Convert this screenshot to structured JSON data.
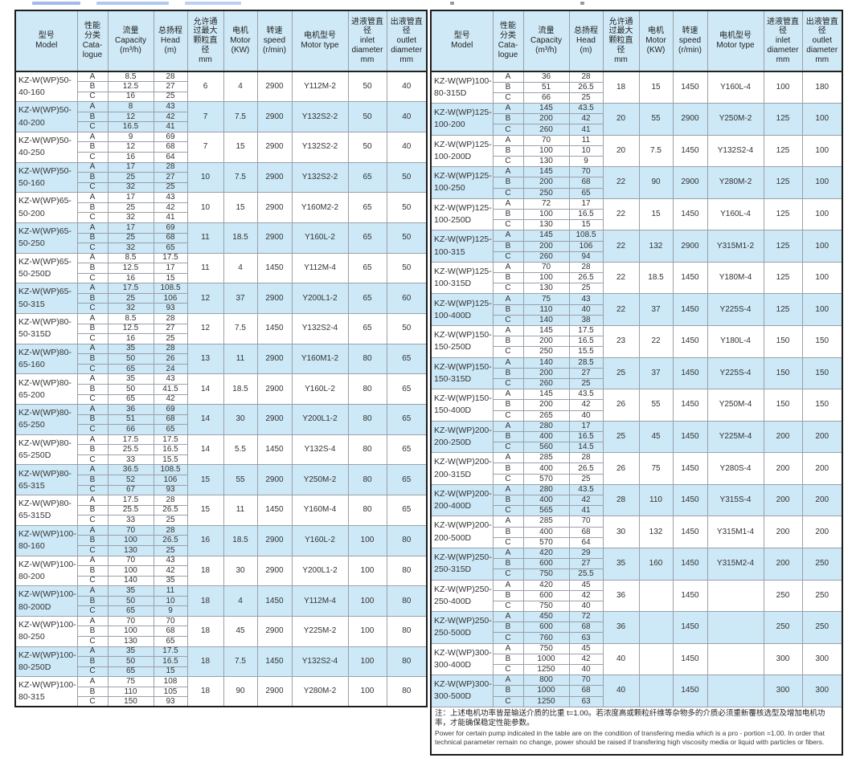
{
  "colors": {
    "header_bg": "#cfe9f6",
    "row_alt": "#cde8f6",
    "outer_border": "#1c1c1c",
    "inner_border": "#9aa0a8"
  },
  "columns": [
    {
      "key": "model",
      "label": "型号\nModel"
    },
    {
      "key": "cat",
      "label": "性能\n分类\nCata-\nlogue"
    },
    {
      "key": "capacity",
      "label": "流量\nCapacity\n(m³/h)"
    },
    {
      "key": "head",
      "label": "总扬程\nHead\n(m)"
    },
    {
      "key": "particle",
      "label": "允许通\n过最大\n颗粒直\n径\nmm"
    },
    {
      "key": "motor",
      "label": "电机\nMotor\n(KW)"
    },
    {
      "key": "speed",
      "label": "转速\nspeed\n(r/min)"
    },
    {
      "key": "type",
      "label": "电机型号\nMotor type"
    },
    {
      "key": "inlet",
      "label": "进液管直\n径\ninlet\ndiameter\nmm"
    },
    {
      "key": "outlet",
      "label": "出液管直\n径\noutlet\ndiameter\nmm"
    }
  ],
  "cat_labels": [
    "A",
    "B",
    "C"
  ],
  "table_left": {
    "rows": [
      {
        "model": "KZ-W(WP)50-\n40-160",
        "abc": [
          [
            "8.5",
            "28"
          ],
          [
            "12.5",
            "27"
          ],
          [
            "16",
            "25"
          ]
        ],
        "particle": "6",
        "motor": "4",
        "speed": "2900",
        "type": "Y112M-2",
        "inlet": "50",
        "outlet": "40"
      },
      {
        "model": "KZ-W(WP)50-\n40-200",
        "abc": [
          [
            "8",
            "43"
          ],
          [
            "12",
            "42"
          ],
          [
            "16.5",
            "41"
          ]
        ],
        "particle": "7",
        "motor": "7.5",
        "speed": "2900",
        "type": "Y132S2-2",
        "inlet": "50",
        "outlet": "40"
      },
      {
        "model": "KZ-W(WP)50-\n40-250",
        "abc": [
          [
            "9",
            "69"
          ],
          [
            "12",
            "68"
          ],
          [
            "16",
            "64"
          ]
        ],
        "particle": "7",
        "motor": "15",
        "speed": "2900",
        "type": "Y132S2-2",
        "inlet": "50",
        "outlet": "40"
      },
      {
        "model": "KZ-W(WP)50-\n50-160",
        "abc": [
          [
            "17",
            "28"
          ],
          [
            "25",
            "27"
          ],
          [
            "32",
            "25"
          ]
        ],
        "particle": "10",
        "motor": "7.5",
        "speed": "2900",
        "type": "Y132S2-2",
        "inlet": "65",
        "outlet": "50"
      },
      {
        "model": "KZ-W(WP)65-\n50-200",
        "abc": [
          [
            "17",
            "43"
          ],
          [
            "25",
            "42"
          ],
          [
            "32",
            "41"
          ]
        ],
        "particle": "10",
        "motor": "15",
        "speed": "2900",
        "type": "Y160M2-2",
        "inlet": "65",
        "outlet": "50"
      },
      {
        "model": "KZ-W(WP)65-\n50-250",
        "abc": [
          [
            "17",
            "69"
          ],
          [
            "25",
            "68"
          ],
          [
            "32",
            "65"
          ]
        ],
        "particle": "11",
        "motor": "18.5",
        "speed": "2900",
        "type": "Y160L-2",
        "inlet": "65",
        "outlet": "50"
      },
      {
        "model": "KZ-W(WP)65-\n50-250D",
        "abc": [
          [
            "8.5",
            "17.5"
          ],
          [
            "12.5",
            "17"
          ],
          [
            "16",
            "15"
          ]
        ],
        "particle": "11",
        "motor": "4",
        "speed": "1450",
        "type": "Y112M-4",
        "inlet": "65",
        "outlet": "50"
      },
      {
        "model": "KZ-W(WP)65-\n50-315",
        "abc": [
          [
            "17.5",
            "108.5"
          ],
          [
            "25",
            "106"
          ],
          [
            "32",
            "93"
          ]
        ],
        "particle": "12",
        "motor": "37",
        "speed": "2900",
        "type": "Y200L1-2",
        "inlet": "65",
        "outlet": "60"
      },
      {
        "model": "KZ-W(WP)80-\n50-315D",
        "abc": [
          [
            "8.5",
            "28"
          ],
          [
            "12.5",
            "27"
          ],
          [
            "16",
            "25"
          ]
        ],
        "particle": "12",
        "motor": "7.5",
        "speed": "1450",
        "type": "Y132S2-4",
        "inlet": "65",
        "outlet": "50"
      },
      {
        "model": "KZ-W(WP)80-\n65-160",
        "abc": [
          [
            "35",
            "28"
          ],
          [
            "50",
            "26"
          ],
          [
            "65",
            "24"
          ]
        ],
        "particle": "13",
        "motor": "11",
        "speed": "2900",
        "type": "Y160M1-2",
        "inlet": "80",
        "outlet": "65"
      },
      {
        "model": "KZ-W(WP)80-\n65-200",
        "abc": [
          [
            "35",
            "43"
          ],
          [
            "50",
            "41.5"
          ],
          [
            "65",
            "42"
          ]
        ],
        "particle": "14",
        "motor": "18.5",
        "speed": "2900",
        "type": "Y160L-2",
        "inlet": "80",
        "outlet": "65"
      },
      {
        "model": "KZ-W(WP)80-\n65-250",
        "abc": [
          [
            "36",
            "69"
          ],
          [
            "51",
            "68"
          ],
          [
            "66",
            "65"
          ]
        ],
        "particle": "14",
        "motor": "30",
        "speed": "2900",
        "type": "Y200L1-2",
        "inlet": "80",
        "outlet": "65"
      },
      {
        "model": "KZ-W(WP)80-\n65-250D",
        "abc": [
          [
            "17.5",
            "17.5"
          ],
          [
            "25.5",
            "16.5"
          ],
          [
            "33",
            "15.5"
          ]
        ],
        "particle": "14",
        "motor": "5.5",
        "speed": "1450",
        "type": "Y132S-4",
        "inlet": "80",
        "outlet": "65"
      },
      {
        "model": "KZ-W(WP)80-\n65-315",
        "abc": [
          [
            "36.5",
            "108.5"
          ],
          [
            "52",
            "106"
          ],
          [
            "67",
            "93"
          ]
        ],
        "particle": "15",
        "motor": "55",
        "speed": "2900",
        "type": "Y250M-2",
        "inlet": "80",
        "outlet": "65"
      },
      {
        "model": "KZ-W(WP)80-\n65-315D",
        "abc": [
          [
            "17.5",
            "28"
          ],
          [
            "25.5",
            "26.5"
          ],
          [
            "33",
            "25"
          ]
        ],
        "particle": "15",
        "motor": "11",
        "speed": "1450",
        "type": "Y160M-4",
        "inlet": "80",
        "outlet": "65"
      },
      {
        "model": "KZ-W(WP)100-\n80-160",
        "abc": [
          [
            "70",
            "28"
          ],
          [
            "100",
            "26.5"
          ],
          [
            "130",
            "25"
          ]
        ],
        "particle": "16",
        "motor": "18.5",
        "speed": "2900",
        "type": "Y160L-2",
        "inlet": "100",
        "outlet": "80"
      },
      {
        "model": "KZ-W(WP)100-\n80-200",
        "abc": [
          [
            "70",
            "43"
          ],
          [
            "100",
            "42"
          ],
          [
            "140",
            "35"
          ]
        ],
        "particle": "18",
        "motor": "30",
        "speed": "2900",
        "type": "Y200L1-2",
        "inlet": "100",
        "outlet": "80"
      },
      {
        "model": "KZ-W(WP)100-\n80-200D",
        "abc": [
          [
            "35",
            "11"
          ],
          [
            "50",
            "10"
          ],
          [
            "65",
            "9"
          ]
        ],
        "particle": "18",
        "motor": "4",
        "speed": "1450",
        "type": "Y112M-4",
        "inlet": "100",
        "outlet": "80"
      },
      {
        "model": "KZ-W(WP)100-\n80-250",
        "abc": [
          [
            "70",
            "70"
          ],
          [
            "100",
            "68"
          ],
          [
            "130",
            "65"
          ]
        ],
        "particle": "18",
        "motor": "45",
        "speed": "2900",
        "type": "Y225M-2",
        "inlet": "100",
        "outlet": "80"
      },
      {
        "model": "KZ-W(WP)100-\n80-250D",
        "abc": [
          [
            "35",
            "17.5"
          ],
          [
            "50",
            "16.5"
          ],
          [
            "65",
            "15"
          ]
        ],
        "particle": "18",
        "motor": "7.5",
        "speed": "1450",
        "type": "Y132S2-4",
        "inlet": "100",
        "outlet": "80"
      },
      {
        "model": "KZ-W(WP)100-\n80-315",
        "abc": [
          [
            "75",
            "108"
          ],
          [
            "110",
            "105"
          ],
          [
            "150",
            "93"
          ]
        ],
        "particle": "18",
        "motor": "90",
        "speed": "2900",
        "type": "Y280M-2",
        "inlet": "100",
        "outlet": "80"
      }
    ]
  },
  "table_right": {
    "rows": [
      {
        "model": "KZ-W(WP)100-\n80-315D",
        "abc": [
          [
            "36",
            "28"
          ],
          [
            "51",
            "26.5"
          ],
          [
            "66",
            "25"
          ]
        ],
        "particle": "18",
        "motor": "15",
        "speed": "1450",
        "type": "Y160L-4",
        "inlet": "100",
        "outlet": "180"
      },
      {
        "model": "KZ-W(WP)125-\n100-200",
        "abc": [
          [
            "145",
            "43.5"
          ],
          [
            "200",
            "42"
          ],
          [
            "260",
            "41"
          ]
        ],
        "particle": "20",
        "motor": "55",
        "speed": "2900",
        "type": "Y250M-2",
        "inlet": "125",
        "outlet": "100"
      },
      {
        "model": "KZ-W(WP)125-\n100-200D",
        "abc": [
          [
            "70",
            "11"
          ],
          [
            "100",
            "10"
          ],
          [
            "130",
            "9"
          ]
        ],
        "particle": "20",
        "motor": "7.5",
        "speed": "1450",
        "type": "Y132S2-4",
        "inlet": "125",
        "outlet": "100"
      },
      {
        "model": "KZ-W(WP)125-\n100-250",
        "abc": [
          [
            "145",
            "70"
          ],
          [
            "200",
            "68"
          ],
          [
            "250",
            "65"
          ]
        ],
        "particle": "22",
        "motor": "90",
        "speed": "2900",
        "type": "Y280M-2",
        "inlet": "125",
        "outlet": "100"
      },
      {
        "model": "KZ-W(WP)125-\n100-250D",
        "abc": [
          [
            "72",
            "17"
          ],
          [
            "100",
            "16.5"
          ],
          [
            "130",
            "15"
          ]
        ],
        "particle": "22",
        "motor": "15",
        "speed": "1450",
        "type": "Y160L-4",
        "inlet": "125",
        "outlet": "100"
      },
      {
        "model": "KZ-W(WP)125-\n100-315",
        "abc": [
          [
            "145",
            "108.5"
          ],
          [
            "200",
            "106"
          ],
          [
            "260",
            "94"
          ]
        ],
        "particle": "22",
        "motor": "132",
        "speed": "2900",
        "type": "Y315M1-2",
        "inlet": "125",
        "outlet": "100"
      },
      {
        "model": "KZ-W(WP)125-\n100-315D",
        "abc": [
          [
            "70",
            "28"
          ],
          [
            "100",
            "26.5"
          ],
          [
            "130",
            "25"
          ]
        ],
        "particle": "22",
        "motor": "18.5",
        "speed": "1450",
        "type": "Y180M-4",
        "inlet": "125",
        "outlet": "100"
      },
      {
        "model": "KZ-W(WP)125-\n100-400D",
        "abc": [
          [
            "75",
            "43"
          ],
          [
            "110",
            "40"
          ],
          [
            "140",
            "38"
          ]
        ],
        "particle": "22",
        "motor": "37",
        "speed": "1450",
        "type": "Y225S-4",
        "inlet": "125",
        "outlet": "100"
      },
      {
        "model": "KZ-W(WP)150-\n150-250D",
        "abc": [
          [
            "145",
            "17.5"
          ],
          [
            "200",
            "16.5"
          ],
          [
            "250",
            "15.5"
          ]
        ],
        "particle": "23",
        "motor": "22",
        "speed": "1450",
        "type": "Y180L-4",
        "inlet": "150",
        "outlet": "150"
      },
      {
        "model": "KZ-W(WP)150-\n150-315D",
        "abc": [
          [
            "140",
            "28.5"
          ],
          [
            "200",
            "27"
          ],
          [
            "260",
            "25"
          ]
        ],
        "particle": "25",
        "motor": "37",
        "speed": "1450",
        "type": "Y225S-4",
        "inlet": "150",
        "outlet": "150"
      },
      {
        "model": "KZ-W(WP)150-\n150-400D",
        "abc": [
          [
            "145",
            "43.5"
          ],
          [
            "200",
            "42"
          ],
          [
            "265",
            "40"
          ]
        ],
        "particle": "26",
        "motor": "55",
        "speed": "1450",
        "type": "Y250M-4",
        "inlet": "150",
        "outlet": "150"
      },
      {
        "model": "KZ-W(WP)200-\n200-250D",
        "abc": [
          [
            "280",
            "17"
          ],
          [
            "400",
            "16.5"
          ],
          [
            "560",
            "14.5"
          ]
        ],
        "particle": "25",
        "motor": "45",
        "speed": "1450",
        "type": "Y225M-4",
        "inlet": "200",
        "outlet": "200"
      },
      {
        "model": "KZ-W(WP)200-\n200-315D",
        "abc": [
          [
            "285",
            "28"
          ],
          [
            "400",
            "26.5"
          ],
          [
            "570",
            "25"
          ]
        ],
        "particle": "26",
        "motor": "75",
        "speed": "1450",
        "type": "Y280S-4",
        "inlet": "200",
        "outlet": "200"
      },
      {
        "model": "KZ-W(WP)200-\n200-400D",
        "abc": [
          [
            "280",
            "43.5"
          ],
          [
            "400",
            "42"
          ],
          [
            "565",
            "41"
          ]
        ],
        "particle": "28",
        "motor": "110",
        "speed": "1450",
        "type": "Y315S-4",
        "inlet": "200",
        "outlet": "200"
      },
      {
        "model": "KZ-W(WP)200-\n200-500D",
        "abc": [
          [
            "285",
            "70"
          ],
          [
            "400",
            "68"
          ],
          [
            "570",
            "64"
          ]
        ],
        "particle": "30",
        "motor": "132",
        "speed": "1450",
        "type": "Y315M1-4",
        "inlet": "200",
        "outlet": "200"
      },
      {
        "model": "KZ-W(WP)250-\n250-315D",
        "abc": [
          [
            "420",
            "29"
          ],
          [
            "600",
            "27"
          ],
          [
            "750",
            "25.5"
          ]
        ],
        "particle": "35",
        "motor": "160",
        "speed": "1450",
        "type": "Y315M2-4",
        "inlet": "200",
        "outlet": "250"
      },
      {
        "model": "KZ-W(WP)250-\n250-400D",
        "abc": [
          [
            "420",
            "45"
          ],
          [
            "600",
            "42"
          ],
          [
            "750",
            "40"
          ]
        ],
        "particle": "36",
        "motor": "",
        "speed": "1450",
        "type": "",
        "inlet": "250",
        "outlet": "250"
      },
      {
        "model": "KZ-W(WP)250-\n250-500D",
        "abc": [
          [
            "450",
            "72"
          ],
          [
            "600",
            "68"
          ],
          [
            "760",
            "63"
          ]
        ],
        "particle": "36",
        "motor": "",
        "speed": "1450",
        "type": "",
        "inlet": "250",
        "outlet": "250"
      },
      {
        "model": "KZ-W(WP)300-\n300-400D",
        "abc": [
          [
            "750",
            "45"
          ],
          [
            "1000",
            "42"
          ],
          [
            "1250",
            "40"
          ]
        ],
        "particle": "40",
        "motor": "",
        "speed": "1450",
        "type": "",
        "inlet": "300",
        "outlet": "300"
      },
      {
        "model": "KZ-W(WP)300-\n300-500D",
        "abc": [
          [
            "800",
            "70"
          ],
          [
            "1000",
            "68"
          ],
          [
            "1250",
            "63"
          ]
        ],
        "particle": "40",
        "motor": "",
        "speed": "1450",
        "type": "",
        "inlet": "300",
        "outlet": "300"
      }
    ],
    "note_zh": "注：上述电机功率皆是输送介质的比重 t=1.00。若浓度高或颗粒纤维等杂物多的介质必须重新覆核选型及增加电机功率，才能确保稳定性能参数。",
    "note_en": "Power for certain pump indicated in the table are on the condition of transfering media which is a pro - portion =1.00. In order that technical parameter remain no change, power should be raised if transfering high viscosity media or liquid with particles or fibers."
  }
}
